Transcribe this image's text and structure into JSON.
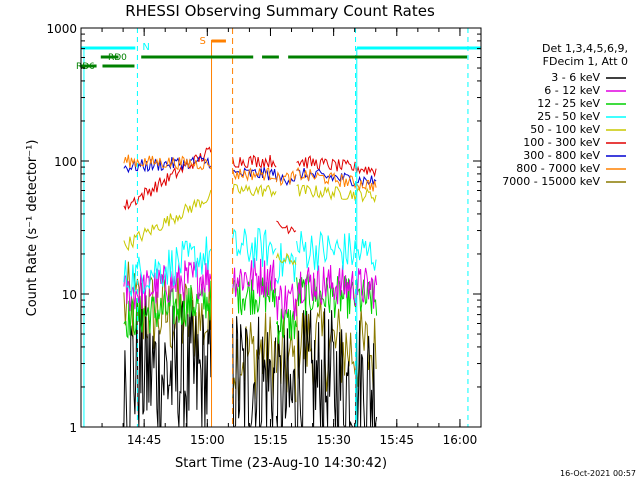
{
  "chart_data": {
    "type": "line",
    "title": "RHESSI Observing Summary Count Rates",
    "xlabel": "Start Time (23-Aug-10 14:30:42)",
    "ylabel": "Count Rate (s⁻¹ detector⁻¹)",
    "yscale": "log",
    "ylim": [
      1,
      1000
    ],
    "y_ticks": [
      1,
      10,
      100,
      1000
    ],
    "y_tick_labels": [
      "1",
      "10",
      "100",
      "1000"
    ],
    "x_range_min": [
      -0.7,
      94.3
    ],
    "x_ticks_min": [
      14.3,
      29.3,
      44.3,
      59.3,
      74.3,
      89.3
    ],
    "x_tick_labels": [
      "14:45",
      "15:00",
      "15:15",
      "15:30",
      "15:45",
      "16:00"
    ],
    "header_lines": [
      "Det 1,3,4,5,6,9,",
      "FDecim 1, Att 0"
    ],
    "timestamp": "16-Oct-2021 00:57",
    "bands": [
      {
        "label": "3 - 6 keV",
        "color": "#000000"
      },
      {
        "label": "6 - 12 keV",
        "color": "#e000e0"
      },
      {
        "label": "12 - 25 keV",
        "color": "#00d000"
      },
      {
        "label": "25 - 50 keV",
        "color": "#00ffff"
      },
      {
        "label": "50 - 100 keV",
        "color": "#c8c800"
      },
      {
        "label": "100 - 300 keV",
        "color": "#e00000"
      },
      {
        "label": "300 - 800 keV",
        "color": "#0000d0"
      },
      {
        "label": "800 - 7000 keV",
        "color": "#ff8000"
      },
      {
        "label": "7000 - 15000 keV",
        "color": "#8a7a00"
      }
    ],
    "segments": [
      {
        "start": 9.5,
        "end": 30.3,
        "start_values": [
          2.8,
          10,
          6.5,
          13,
          23,
          45,
          90,
          100,
          8
        ],
        "end_values": [
          2.2,
          14,
          9,
          20,
          55,
          120,
          100,
          95,
          6
        ]
      },
      {
        "start": 35.3,
        "end": 45.7,
        "start_values": [
          2.2,
          13.5,
          10,
          22,
          60,
          100,
          80,
          80,
          3.5
        ],
        "end_values": [
          2.2,
          13.5,
          10,
          22,
          60,
          100,
          80,
          80,
          3.5
        ]
      },
      {
        "start": 45.7,
        "end": 50.5,
        "start_values": [
          1.5,
          9,
          6,
          17,
          18,
          32,
          73,
          73,
          3
        ],
        "end_values": [
          1.5,
          9,
          6,
          17,
          18,
          32,
          75,
          75,
          3
        ]
      },
      {
        "start": 50.5,
        "end": 69.5,
        "start_values": [
          2,
          12.5,
          10,
          22,
          60,
          100,
          80,
          80,
          4.5
        ],
        "end_values": [
          2,
          11,
          9,
          20,
          55,
          85,
          70,
          65,
          3.5
        ]
      }
    ],
    "saa_band": {
      "label": "S",
      "color": "#ff8000",
      "x_start_min": 30.3,
      "x_end_min": 32.3,
      "dashed_at_min": 35.3
    },
    "night_band": {
      "label": "N",
      "color": "#00ffff",
      "dashed_at_min": [
        12.7,
        64.5,
        91.2
      ],
      "solid_at_min": [
        0.0,
        64.8
      ],
      "bars": [
        [
          -0.7,
          12.2
        ],
        [
          64.8,
          94.3
        ]
      ]
    },
    "rd_flags": [
      {
        "label": "RD0",
        "color": "#008000",
        "bars": [
          [
            4.0,
            8.2
          ],
          [
            13.6,
            40.2
          ],
          [
            42.3,
            46.3
          ],
          [
            48.5,
            91.0
          ]
        ]
      },
      {
        "label": "RD6",
        "color": "#008000",
        "bars": [
          [
            -0.7,
            3.0
          ],
          [
            4.4,
            12.0
          ]
        ]
      }
    ]
  }
}
